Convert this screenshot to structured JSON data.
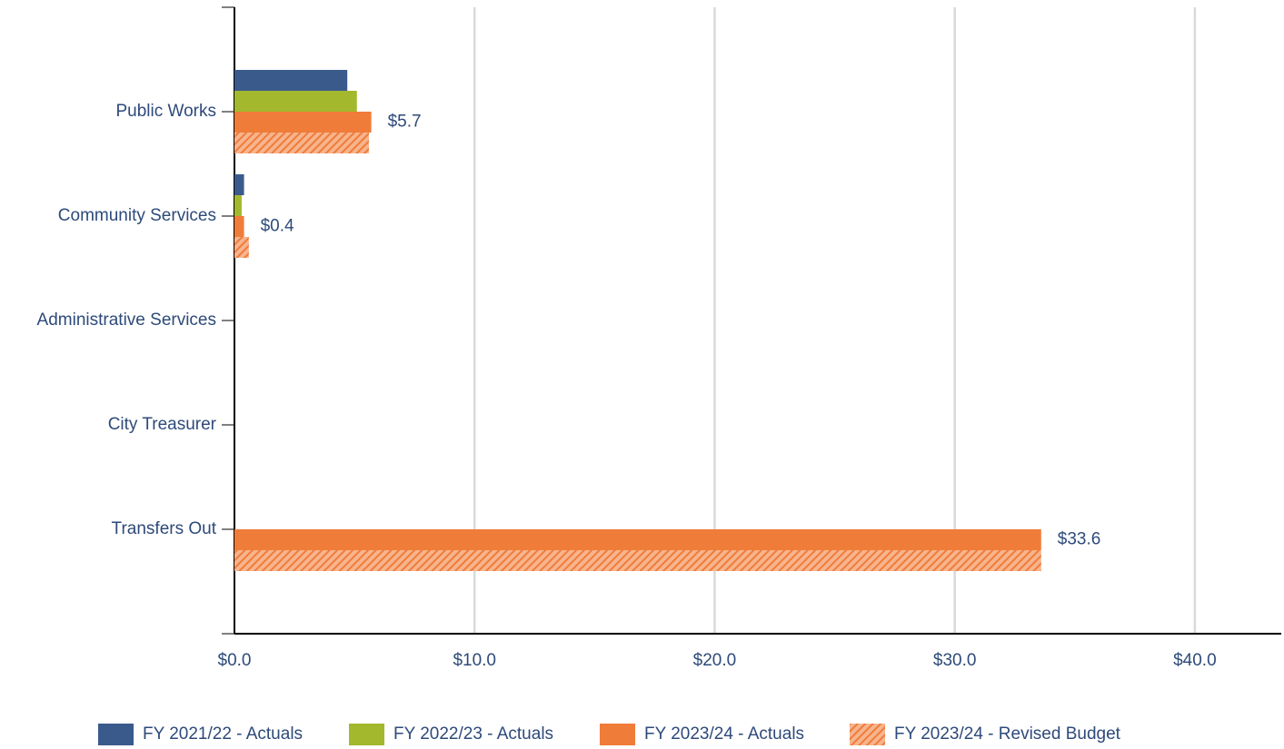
{
  "chart_data": {
    "type": "hbar",
    "categories": [
      "Public Works",
      "Community Services",
      "Administrative Services",
      "City Treasurer",
      "Transfers Out"
    ],
    "series": [
      {
        "name": "FY 2021/22 - Actuals",
        "color": "#3a5a8c",
        "values": [
          4.7,
          0.4,
          0,
          0,
          0
        ]
      },
      {
        "name": "FY 2022/23 - Actuals",
        "color": "#a3b82c",
        "values": [
          5.1,
          0.3,
          0,
          0,
          0
        ]
      },
      {
        "name": "FY 2023/24 - Actuals",
        "color": "#f07c3a",
        "values": [
          5.7,
          0.4,
          0,
          0,
          33.6
        ],
        "value_labels": [
          "$5.7",
          "$0.4",
          null,
          null,
          "$33.6"
        ]
      },
      {
        "name": "FY 2023/24 - Revised Budget",
        "color": "#f07c3a",
        "hatched": true,
        "values": [
          5.6,
          0.6,
          0,
          0,
          33.6
        ]
      }
    ],
    "xlim": [
      0,
      43.6
    ],
    "xticks": [
      {
        "value": 0,
        "label": "$0.0"
      },
      {
        "value": 10,
        "label": "$10.0"
      },
      {
        "value": 20,
        "label": "$20.0"
      },
      {
        "value": 30,
        "label": "$30.0"
      },
      {
        "value": 40,
        "label": "$40.0"
      }
    ],
    "grid": true,
    "legend": "bottom"
  }
}
